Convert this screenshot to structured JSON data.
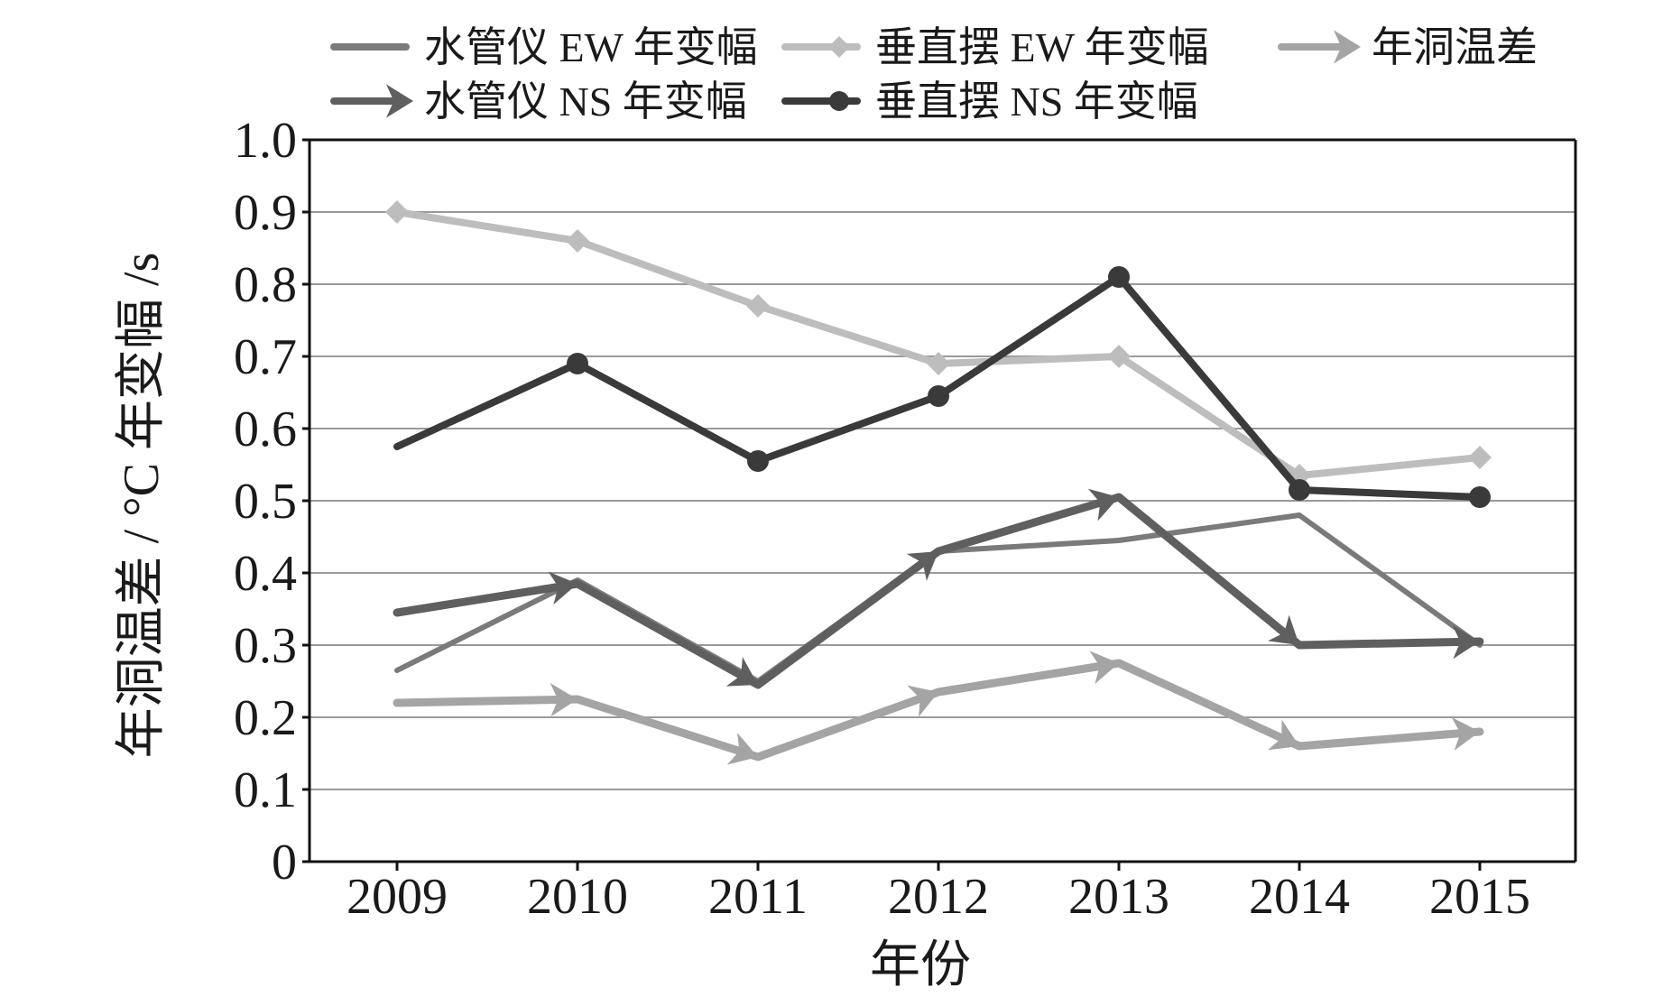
{
  "chart_data": {
    "type": "line",
    "xlabel": "年份",
    "ylabel": "年洞温差 / °C  年变幅 /s",
    "categories": [
      "2009",
      "2010",
      "2011",
      "2012",
      "2013",
      "2014",
      "2015"
    ],
    "ylim": [
      0,
      1.0
    ],
    "yticks": [
      "0",
      "0.1",
      "0.2",
      "0.3",
      "0.4",
      "0.5",
      "0.6",
      "0.7",
      "0.8",
      "0.9",
      "1.0"
    ],
    "grid": "horizontal",
    "legend_position": "top",
    "series": [
      {
        "name": "水管仪 EW 年变幅",
        "values": [
          0.265,
          0.39,
          0.25,
          0.43,
          0.445,
          0.48,
          0.3
        ],
        "color": "#7a7a7a",
        "marker": "none"
      },
      {
        "name": "垂直摆 EW 年变幅",
        "values": [
          0.9,
          0.86,
          0.77,
          0.69,
          0.7,
          0.535,
          0.56
        ],
        "color": "#bdbdbd",
        "marker": "diamond"
      },
      {
        "name": "年洞温差",
        "values": [
          0.22,
          0.225,
          0.145,
          0.235,
          0.275,
          0.16,
          0.18
        ],
        "color": "#a4a4a4",
        "marker": "arrow"
      },
      {
        "name": "水管仪 NS 年变幅",
        "values": [
          0.345,
          0.385,
          0.245,
          0.43,
          0.505,
          0.3,
          0.305
        ],
        "color": "#5f5f5f",
        "marker": "arrow"
      },
      {
        "name": "垂直摆 NS 年变幅",
        "values": [
          0.575,
          0.69,
          0.555,
          0.645,
          0.81,
          0.515,
          0.505
        ],
        "color": "#3a3a3a",
        "marker": "circle"
      }
    ]
  }
}
